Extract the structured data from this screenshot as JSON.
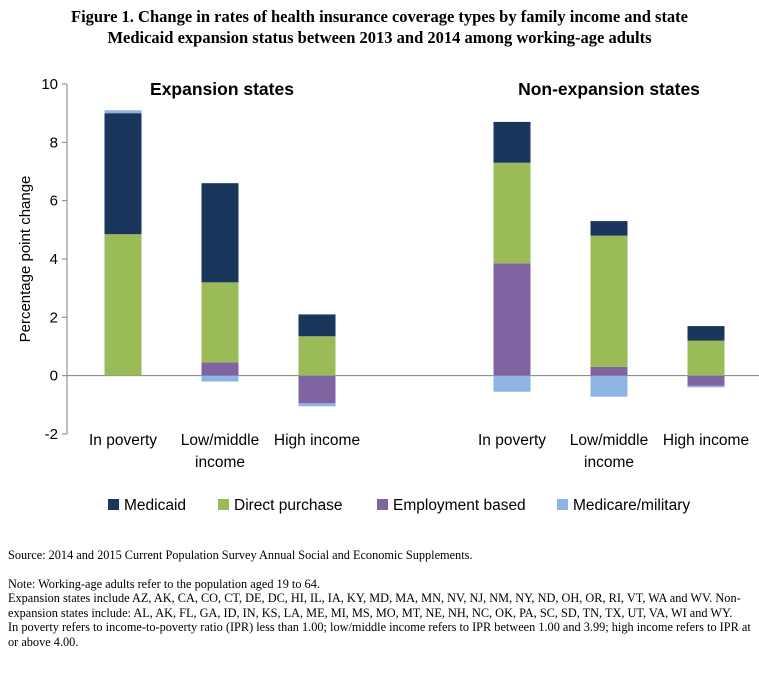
{
  "figure_title_line1": "Figure 1. Change in rates of health insurance coverage types by family income and state",
  "figure_title_line2": "Medicaid expansion status between 2013 and 2014 among working-age adults",
  "source": "Source: 2014 and 2015 Current Population Survey Annual Social and Economic Supplements.",
  "notes": [
    "Note: Working-age adults refer to the population aged 19 to 64.",
    "Expansion states include AZ, AK, CA, CO, CT, DE, DC, HI, IL, IA, KY, MD, MA, MN, NV, NJ, NM, NY, ND, OH, OR, RI, VT, WA and WV. Non-expansion states include: AL, AK, FL, GA, ID, IN, KS, LA, ME, MI, MS, MO, MT, NE, NH, NC, OK, PA, SC, SD, TN, TX, UT, VA, WI and WY.",
    "In poverty refers to income-to-poverty ratio (IPR) less than 1.00; low/middle income refers to IPR between 1.00 and 3.99; high income refers to IPR at or above 4.00."
  ],
  "chart_data": {
    "type": "bar",
    "stacked": true,
    "ylabel": "Percentage point change",
    "ylim": [
      -2,
      10
    ],
    "yticks": [
      -2,
      0,
      2,
      4,
      6,
      8,
      10
    ],
    "grid": false,
    "legend_position": "bottom",
    "colors": {
      "Medicaid": "#1a365d",
      "Direct purchase": "#9bbb59",
      "Employment based": "#8064a2",
      "Medicare/military": "#8eb4e3"
    },
    "panels": [
      {
        "title": "Expansion states",
        "categories": [
          "In poverty",
          "Low/middle income",
          "High income"
        ],
        "category_lines": [
          [
            "In poverty"
          ],
          [
            "Low/middle",
            "income"
          ],
          [
            "High income"
          ]
        ],
        "series": [
          {
            "name": "Medicaid",
            "values": [
              4.15,
              3.4,
              0.75
            ]
          },
          {
            "name": "Direct purchase",
            "values": [
              4.85,
              2.75,
              1.35
            ]
          },
          {
            "name": "Employment based",
            "values": [
              0.0,
              0.45,
              -0.95
            ]
          },
          {
            "name": "Medicare/military",
            "values": [
              0.1,
              -0.2,
              -0.1
            ]
          }
        ]
      },
      {
        "title": "Non-expansion states",
        "categories": [
          "In poverty",
          "Low/middle income",
          "High income"
        ],
        "category_lines": [
          [
            "In poverty"
          ],
          [
            "Low/middle",
            "income"
          ],
          [
            "High income"
          ]
        ],
        "series": [
          {
            "name": "Medicaid",
            "values": [
              1.4,
              0.5,
              0.5
            ]
          },
          {
            "name": "Direct purchase",
            "values": [
              3.45,
              4.5,
              1.2
            ]
          },
          {
            "name": "Employment based",
            "values": [
              3.85,
              0.3,
              -0.35
            ]
          },
          {
            "name": "Medicare/military",
            "values": [
              -0.55,
              -0.72,
              -0.05
            ]
          }
        ]
      }
    ]
  }
}
